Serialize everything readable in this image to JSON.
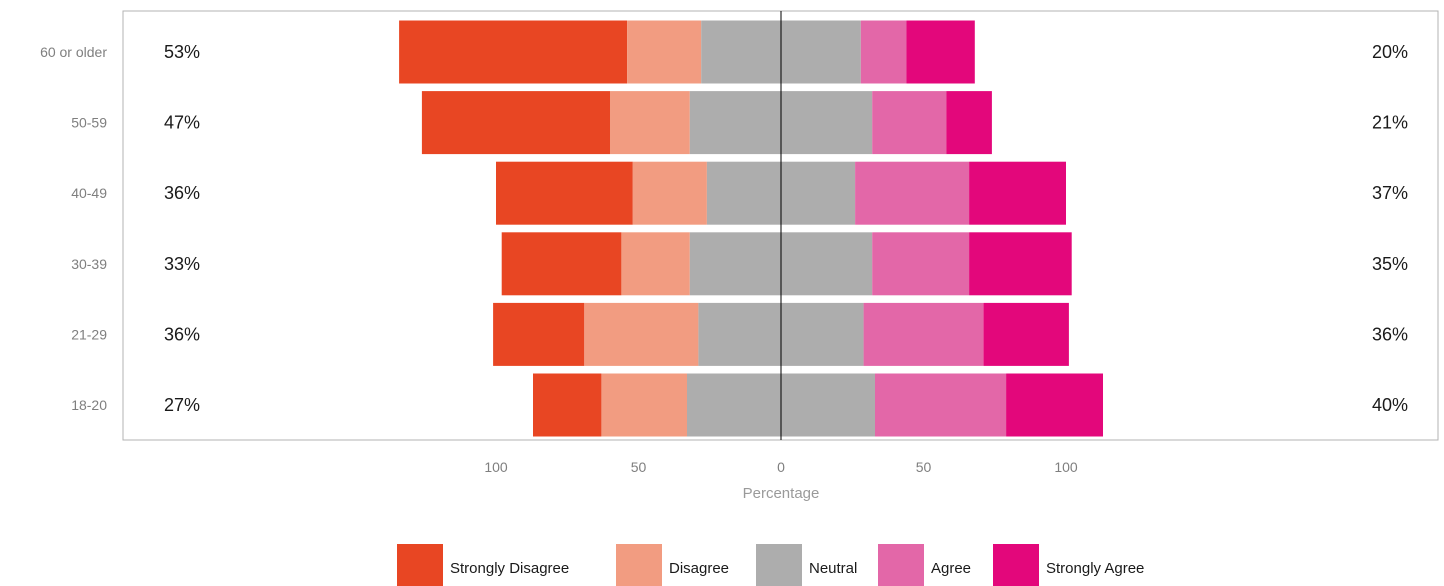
{
  "chart_data": {
    "type": "bar",
    "orientation": "horizontal",
    "stacking": "diverging",
    "categories": [
      "18-20",
      "21-29",
      "30-39",
      "40-49",
      "50-59",
      "60 or older"
    ],
    "series": [
      {
        "name": "Strongly Disagree",
        "color": "#e84623",
        "values": [
          12,
          16,
          21,
          24,
          33,
          40
        ]
      },
      {
        "name": "Disagree",
        "color": "#f29c81",
        "values": [
          15,
          20,
          12,
          13,
          14,
          13
        ]
      },
      {
        "name": "Neutral",
        "color": "#adadad",
        "values": [
          33,
          29,
          32,
          26,
          32,
          28
        ]
      },
      {
        "name": "Agree",
        "color": "#e367a8",
        "values": [
          23,
          21,
          17,
          20,
          13,
          8
        ]
      },
      {
        "name": "Strongly Agree",
        "color": "#e3077b",
        "values": [
          17,
          15,
          18,
          17,
          8,
          12
        ]
      }
    ],
    "left_labels": [
      "27%",
      "36%",
      "33%",
      "36%",
      "47%",
      "53%"
    ],
    "right_labels": [
      "40%",
      "36%",
      "35%",
      "37%",
      "21%",
      "20%"
    ],
    "xlabel": "Percentage",
    "ylabel": "",
    "xlim": [
      -100,
      100
    ],
    "xticks": [
      -100,
      -50,
      0,
      50,
      100
    ],
    "xtick_labels": [
      "100",
      "50",
      "0",
      "50",
      "100"
    ],
    "legend_position": "bottom",
    "grid": false
  }
}
